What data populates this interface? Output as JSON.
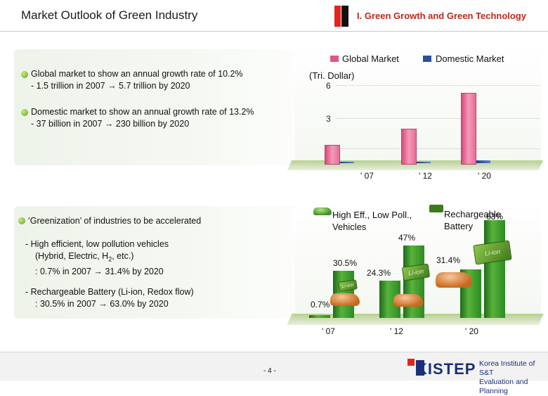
{
  "header": {
    "title": "Market Outlook of Green Industry",
    "section": "I. Green Growth and Green Technology"
  },
  "top_panel": {
    "bullets": [
      {
        "line1": "Global market to show an annual growth rate of 10.2%",
        "line2": "- 1.5 trillion in 2007 → 5.7 trillion by 2020"
      },
      {
        "line1": "Domestic market to show an annual growth rate of 13.2%",
        "line2": "- 37 billion in 2007 → 230 billion by 2020"
      }
    ]
  },
  "chart_data": [
    {
      "type": "bar",
      "unit_label": "(Tri. Dollar)",
      "categories": [
        "' 07",
        "' 12",
        "' 20"
      ],
      "series": [
        {
          "name": "Global Market",
          "values": [
            1.5,
            2.8,
            5.7
          ],
          "color": "#e0578a"
        },
        {
          "name": "Domestic Market",
          "values": [
            0.037,
            0.08,
            0.23
          ],
          "color": "#2b4fa0"
        }
      ],
      "y_ticks": [
        "6",
        "3",
        "1"
      ],
      "ylim": [
        0,
        6.5
      ]
    },
    {
      "type": "bar",
      "categories": [
        "' 07",
        "' 12",
        "' 20"
      ],
      "series": [
        {
          "name": "High Eff., Low Poll., Vehicles",
          "values": [
            0.7,
            24.3,
            31.4
          ],
          "labels": [
            "0.7%",
            "24.3%",
            "31.4%"
          ]
        },
        {
          "name": "Rechargeable Battery",
          "values": [
            30.5,
            47,
            63
          ],
          "labels": [
            "30.5%",
            "47%",
            "63%"
          ]
        }
      ],
      "ylim": [
        0,
        70
      ]
    }
  ],
  "bottom_panel": {
    "heading": "‘Greenization’ of industries to be accelerated",
    "lines": [
      "- High efficient, low pollution vehicles",
      "(Hybrid, Electric, H",
      "2",
      ", etc.)",
      ": 0.7% in 2007 → 31.4% by 2020",
      "- Rechargeable Battery (Li-ion, Redox flow)",
      ": 30.5% in 2007 → 63.0% by 2020"
    ],
    "legend_vehicles": "High Eff., Low Poll., Vehicles",
    "legend_battery_1": "Rechargeable",
    "legend_battery_2": "Battery",
    "battery_text": "Li-ion"
  },
  "footer": {
    "page": "- 4 -",
    "logo": "KISTEP",
    "org_line1": "Korea Institute of S&T",
    "org_line2": "Evaluation and Planning"
  },
  "colors": {
    "accent_red": "#c0271c",
    "global_bar": "#e0578a",
    "domestic_bar": "#2b4fa0",
    "green": "#3f8f2a"
  }
}
